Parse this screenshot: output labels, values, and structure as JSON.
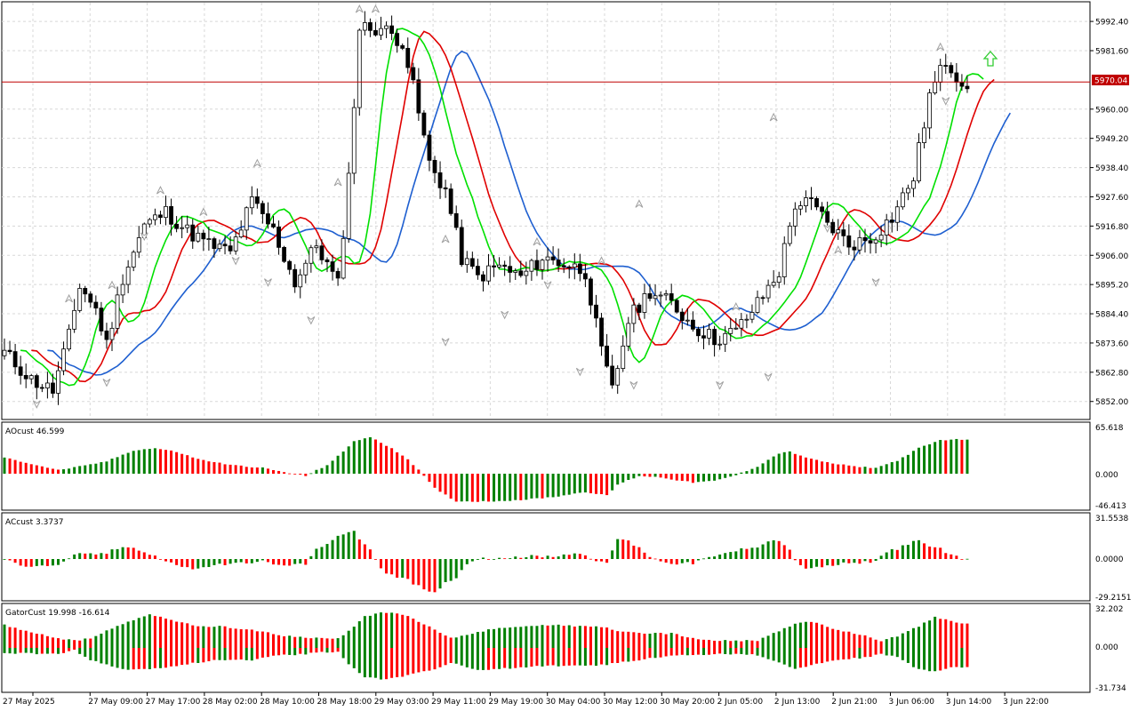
{
  "current_price": "5970.04",
  "colors": {
    "bull": "#008000",
    "bear": "#ff0000",
    "candle": "#000000",
    "jaw": "#1e5fd0",
    "teeth": "#e00000",
    "lips": "#00e000",
    "price_line": "#c00000",
    "grid": "#d8d8d8",
    "fractal": "#a0a0a0",
    "signal_arrow": "#32cd32"
  },
  "panels": {
    "ao": {
      "title": "AOcust 46.599",
      "ticks": [
        "65.618",
        "0.000",
        "-46.413"
      ]
    },
    "ac": {
      "title": "ACcust 3.3737",
      "ticks": [
        "31.5538",
        "0.0000",
        "-29.2151"
      ]
    },
    "gator": {
      "title": "GatorCust 19.998 -16.614",
      "ticks": [
        "32.202",
        "0.000",
        "-31.734"
      ]
    }
  },
  "price_axis_labels": [
    "5992.40",
    "5981.60",
    "5960.00",
    "5949.20",
    "5938.40",
    "5927.60",
    "5916.80",
    "5906.00",
    "5895.20",
    "5884.40",
    "5873.60",
    "5862.80",
    "5852.00"
  ],
  "time_labels": [
    "27 May 2025",
    "27 May 09:00",
    "27 May 17:00",
    "28 May 02:00",
    "28 May 10:00",
    "28 May 18:00",
    "29 May 03:00",
    "29 May 11:00",
    "29 May 19:00",
    "30 May 04:00",
    "30 May 12:00",
    "30 May 20:00",
    "2 Jun 05:00",
    "2 Jun 13:00",
    "2 Jun 21:00",
    "3 Jun 06:00",
    "3 Jun 14:00",
    "3 Jun 22:00"
  ],
  "chart_data": {
    "type": "candlestick",
    "symbol_price_range": [
      5846,
      5999
    ],
    "price_keypoints": [
      [
        0,
        5870
      ],
      [
        5,
        5860
      ],
      [
        9,
        5856
      ],
      [
        12,
        5876
      ],
      [
        14,
        5895
      ],
      [
        17,
        5886
      ],
      [
        19,
        5873
      ],
      [
        22,
        5898
      ],
      [
        26,
        5917
      ],
      [
        30,
        5922
      ],
      [
        34,
        5915
      ],
      [
        38,
        5910
      ],
      [
        42,
        5907
      ],
      [
        46,
        5926
      ],
      [
        50,
        5915
      ],
      [
        54,
        5896
      ],
      [
        58,
        5910
      ],
      [
        62,
        5895
      ],
      [
        64,
        5935
      ],
      [
        66,
        5990
      ],
      [
        70,
        5990
      ],
      [
        74,
        5985
      ],
      [
        76,
        5968
      ],
      [
        79,
        5940
      ],
      [
        82,
        5930
      ],
      [
        85,
        5905
      ],
      [
        88,
        5898
      ],
      [
        92,
        5902
      ],
      [
        96,
        5898
      ],
      [
        100,
        5905
      ],
      [
        104,
        5903
      ],
      [
        108,
        5900
      ],
      [
        111,
        5870
      ],
      [
        113,
        5856
      ],
      [
        116,
        5882
      ],
      [
        120,
        5893
      ],
      [
        124,
        5888
      ],
      [
        128,
        5880
      ],
      [
        132,
        5875
      ],
      [
        136,
        5878
      ],
      [
        140,
        5888
      ],
      [
        144,
        5900
      ],
      [
        147,
        5925
      ],
      [
        150,
        5925
      ],
      [
        153,
        5918
      ],
      [
        157,
        5910
      ],
      [
        161,
        5912
      ],
      [
        165,
        5920
      ],
      [
        169,
        5935
      ],
      [
        172,
        5965
      ],
      [
        175,
        5978
      ],
      [
        178,
        5970
      ]
    ],
    "ao_keypoints": [
      [
        0,
        22
      ],
      [
        10,
        5
      ],
      [
        15,
        11
      ],
      [
        19,
        17
      ],
      [
        24,
        32
      ],
      [
        28,
        35
      ],
      [
        32,
        30
      ],
      [
        36,
        20
      ],
      [
        42,
        12
      ],
      [
        48,
        8
      ],
      [
        52,
        2
      ],
      [
        56,
        -3
      ],
      [
        60,
        12
      ],
      [
        63,
        30
      ],
      [
        65,
        45
      ],
      [
        68,
        50
      ],
      [
        72,
        35
      ],
      [
        75,
        20
      ],
      [
        77,
        5
      ],
      [
        80,
        -20
      ],
      [
        84,
        -38
      ],
      [
        90,
        -38
      ],
      [
        96,
        -36
      ],
      [
        102,
        -32
      ],
      [
        108,
        -25
      ],
      [
        112,
        -30
      ],
      [
        114,
        -15
      ],
      [
        118,
        -3
      ],
      [
        122,
        -5
      ],
      [
        126,
        -10
      ],
      [
        128,
        -12
      ],
      [
        132,
        -10
      ],
      [
        136,
        -2
      ],
      [
        140,
        10
      ],
      [
        144,
        28
      ],
      [
        146,
        30
      ],
      [
        150,
        20
      ],
      [
        154,
        14
      ],
      [
        158,
        10
      ],
      [
        162,
        8
      ],
      [
        166,
        18
      ],
      [
        170,
        35
      ],
      [
        174,
        46
      ],
      [
        176,
        47
      ]
    ],
    "gator_up_keypoints": [
      [
        0,
        19
      ],
      [
        6,
        12
      ],
      [
        10,
        8
      ],
      [
        13,
        6
      ],
      [
        16,
        8
      ],
      [
        22,
        20
      ],
      [
        27,
        28
      ],
      [
        32,
        22
      ],
      [
        36,
        18
      ],
      [
        40,
        18
      ],
      [
        46,
        15
      ],
      [
        52,
        10
      ],
      [
        58,
        8
      ],
      [
        62,
        8
      ],
      [
        64,
        14
      ],
      [
        67,
        26
      ],
      [
        70,
        30
      ],
      [
        74,
        28
      ],
      [
        77,
        22
      ],
      [
        80,
        15
      ],
      [
        83,
        8
      ],
      [
        87,
        12
      ],
      [
        91,
        16
      ],
      [
        96,
        18
      ],
      [
        102,
        19
      ],
      [
        108,
        18
      ],
      [
        112,
        17
      ],
      [
        114,
        14
      ],
      [
        118,
        12
      ],
      [
        124,
        12
      ],
      [
        128,
        8
      ],
      [
        132,
        6
      ],
      [
        136,
        6
      ],
      [
        140,
        6
      ],
      [
        144,
        14
      ],
      [
        147,
        20
      ],
      [
        150,
        22
      ],
      [
        155,
        15
      ],
      [
        160,
        10
      ],
      [
        163,
        6
      ],
      [
        166,
        10
      ],
      [
        170,
        18
      ],
      [
        173,
        26
      ],
      [
        176,
        22
      ],
      [
        178,
        20
      ]
    ],
    "gator_dn_keypoints": [
      [
        0,
        -4
      ],
      [
        6,
        -5
      ],
      [
        10,
        -5
      ],
      [
        13,
        -2
      ],
      [
        16,
        -10
      ],
      [
        22,
        -18
      ],
      [
        27,
        -18
      ],
      [
        32,
        -15
      ],
      [
        36,
        -12
      ],
      [
        40,
        -10
      ],
      [
        46,
        -10
      ],
      [
        50,
        -6
      ],
      [
        54,
        -6
      ],
      [
        58,
        -4
      ],
      [
        62,
        -3
      ],
      [
        64,
        -14
      ],
      [
        67,
        -24
      ],
      [
        70,
        -26
      ],
      [
        74,
        -24
      ],
      [
        77,
        -20
      ],
      [
        80,
        -18
      ],
      [
        83,
        -12
      ],
      [
        87,
        -18
      ],
      [
        91,
        -18
      ],
      [
        96,
        -16
      ],
      [
        102,
        -15
      ],
      [
        108,
        -15
      ],
      [
        112,
        -14
      ],
      [
        114,
        -12
      ],
      [
        118,
        -10
      ],
      [
        124,
        -6
      ],
      [
        128,
        -6
      ],
      [
        132,
        -5
      ],
      [
        136,
        -5
      ],
      [
        140,
        -6
      ],
      [
        144,
        -12
      ],
      [
        147,
        -18
      ],
      [
        150,
        -14
      ],
      [
        155,
        -10
      ],
      [
        160,
        -8
      ],
      [
        163,
        -5
      ],
      [
        166,
        -8
      ],
      [
        170,
        -18
      ],
      [
        173,
        -20
      ],
      [
        176,
        -16
      ],
      [
        178,
        -16
      ]
    ],
    "fractals_up": [
      [
        12,
        5890
      ],
      [
        20,
        5895
      ],
      [
        29,
        5930
      ],
      [
        37,
        5922
      ],
      [
        47,
        5940
      ],
      [
        62,
        5933
      ],
      [
        66,
        5997
      ],
      [
        69,
        5997
      ],
      [
        82,
        5912
      ],
      [
        99,
        5911
      ],
      [
        111,
        5904
      ],
      [
        118,
        5925
      ],
      [
        136,
        5887
      ],
      [
        143,
        5957
      ],
      [
        155,
        5908
      ],
      [
        174,
        5983
      ]
    ],
    "fractals_down": [
      [
        6,
        5851
      ],
      [
        19,
        5859
      ],
      [
        26,
        5913
      ],
      [
        43,
        5904
      ],
      [
        49,
        5896
      ],
      [
        57,
        5882
      ],
      [
        82,
        5874
      ],
      [
        93,
        5884
      ],
      [
        101,
        5895
      ],
      [
        107,
        5863
      ],
      [
        117,
        5858
      ],
      [
        133,
        5858
      ],
      [
        142,
        5861
      ],
      [
        153,
        5916
      ],
      [
        162,
        5896
      ],
      [
        175,
        5963
      ]
    ],
    "ylim": [
      5846,
      5999
    ],
    "xlabel": "",
    "ylabel": ""
  }
}
